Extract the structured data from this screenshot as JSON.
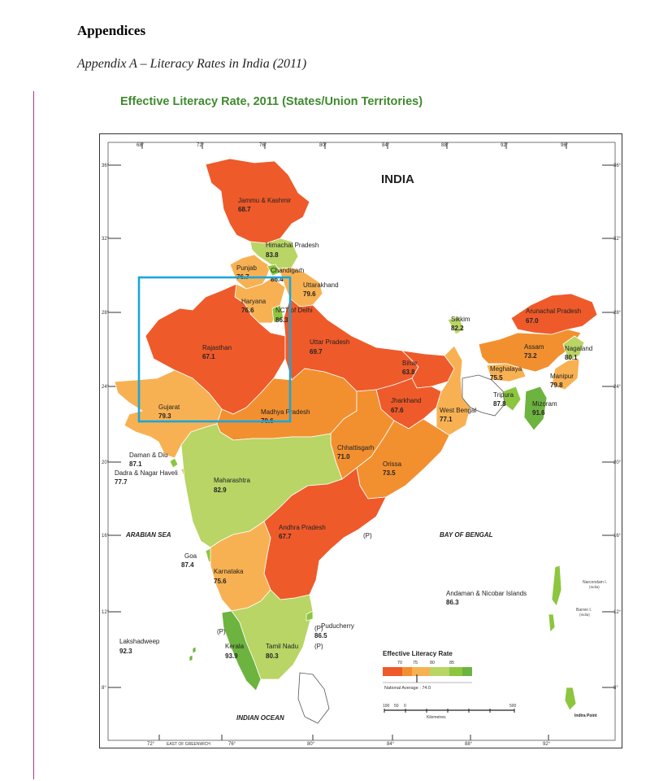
{
  "document": {
    "heading": "Appendices",
    "subheading": "Appendix A – Literacy Rates in India (2011)"
  },
  "map": {
    "title": "Effective Literacy Rate, 2011 (States/Union Territories)",
    "country_label": "INDIA",
    "water_labels": {
      "arabian_sea": "ARABIAN SEA",
      "bay_of_bengal": "BAY OF BENGAL",
      "indian_ocean": "INDIAN OCEAN"
    },
    "top_ticks": [
      "68°",
      "72°",
      "76°",
      "80°",
      "84°",
      "88°",
      "92°",
      "96°"
    ],
    "bottom_ticks": [
      "72°",
      "EAST OF GREENWICH",
      "76°",
      "80°",
      "84°",
      "88°",
      "92°"
    ],
    "left_ticks": [
      "36°",
      "32°",
      "28°",
      "24°",
      "20°",
      "16°",
      "12°",
      "8°"
    ],
    "right_ticks": [
      "36°",
      "32°",
      "28°",
      "24°",
      "20°",
      "16°",
      "12°",
      "8°"
    ],
    "island_notes": {
      "narcondam": "Narcondam I.",
      "narcondam_sub": "(India)",
      "barren": "Barren I.",
      "barren_sub": "(India)",
      "indira_point": "Indira Point"
    },
    "puducherry_markers": [
      "(P)",
      "(P)",
      "(P)",
      "(P)"
    ],
    "states": {
      "jammu_kashmir": {
        "name": "Jammu & Kashmir",
        "rate": "68.7",
        "color": "#ef5a2a"
      },
      "himachal": {
        "name": "Himachal Pradesh",
        "rate": "83.8",
        "color": "#b8d565"
      },
      "punjab": {
        "name": "Punjab",
        "rate": "76.7",
        "color": "#f8b152"
      },
      "chandigarh": {
        "name": "Chandigarh",
        "rate": "86.4",
        "color": "#8cc63f"
      },
      "uttarakhand": {
        "name": "Uttarakhand",
        "rate": "79.6",
        "color": "#f8b152"
      },
      "haryana": {
        "name": "Haryana",
        "rate": "76.6",
        "color": "#f8b152"
      },
      "delhi": {
        "name": "NCT of Delhi",
        "rate": "86.3",
        "color": "#8cc63f"
      },
      "rajasthan": {
        "name": "Rajasthan",
        "rate": "67.1",
        "color": "#ef5a2a"
      },
      "uttar_pradesh": {
        "name": "Uttar Pradesh",
        "rate": "69.7",
        "color": "#ef5a2a"
      },
      "bihar": {
        "name": "Bihar",
        "rate": "63.8",
        "color": "#ef5a2a"
      },
      "sikkim": {
        "name": "Sikkim",
        "rate": "82.2",
        "color": "#b8d565"
      },
      "arunachal": {
        "name": "Arunachal Pradesh",
        "rate": "67.0",
        "color": "#ef5a2a"
      },
      "assam": {
        "name": "Assam",
        "rate": "73.2",
        "color": "#f29030"
      },
      "nagaland": {
        "name": "Nagaland",
        "rate": "80.1",
        "color": "#b8d565"
      },
      "meghalaya": {
        "name": "Meghalaya",
        "rate": "75.5",
        "color": "#f8b152"
      },
      "manipur": {
        "name": "Manipur",
        "rate": "79.8",
        "color": "#f8b152"
      },
      "tripura": {
        "name": "Tripura",
        "rate": "87.8",
        "color": "#8cc63f"
      },
      "mizoram": {
        "name": "Mizoram",
        "rate": "91.6",
        "color": "#6db33f"
      },
      "jharkhand": {
        "name": "Jharkhand",
        "rate": "67.6",
        "color": "#ef5a2a"
      },
      "west_bengal": {
        "name": "West Bengal",
        "rate": "77.1",
        "color": "#f8b152"
      },
      "gujarat": {
        "name": "Gujarat",
        "rate": "79.3",
        "color": "#f8b152"
      },
      "madhya_pradesh": {
        "name": "Madhya Pradesh",
        "rate": "70.6",
        "color": "#f29030"
      },
      "chhattisgarh": {
        "name": "Chhattisgarh",
        "rate": "71.0",
        "color": "#f29030"
      },
      "orissa": {
        "name": "Orissa",
        "rate": "73.5",
        "color": "#f29030"
      },
      "daman_diu": {
        "name": "Daman & Diu",
        "rate": "87.1",
        "color": "#8cc63f"
      },
      "dadra": {
        "name": "Dadra & Nagar Haveli",
        "rate": "77.7",
        "color": "#f8b152"
      },
      "maharashtra": {
        "name": "Maharashtra",
        "rate": "82.9",
        "color": "#b8d565"
      },
      "andhra": {
        "name": "Andhra Pradesh",
        "rate": "67.7",
        "color": "#ef5a2a"
      },
      "goa": {
        "name": "Goa",
        "rate": "87.4",
        "color": "#8cc63f"
      },
      "karnataka": {
        "name": "Karnataka",
        "rate": "75.6",
        "color": "#f8b152"
      },
      "andaman": {
        "name": "Andaman & Nicobar Islands",
        "rate": "86.3",
        "color": "#8cc63f"
      },
      "puducherry": {
        "name": "Puducherry",
        "rate": "86.5",
        "color": "#8cc63f"
      },
      "lakshadweep": {
        "name": "Lakshadweep",
        "rate": "92.3",
        "color": "#6db33f"
      },
      "kerala": {
        "name": "Kerala",
        "rate": "93.9",
        "color": "#6db33f"
      },
      "tamil_nadu": {
        "name": "Tamil Nadu",
        "rate": "80.3",
        "color": "#b8d565"
      }
    },
    "legend": {
      "title": "Effective Literacy Rate",
      "ticks": [
        "70",
        "75",
        "80",
        "85"
      ],
      "colors": [
        "#ef5a2a",
        "#f29030",
        "#f8b152",
        "#b8d565",
        "#8cc63f",
        "#6db33f"
      ],
      "national_average": "National Average : 74.0"
    },
    "scale": {
      "ticks": [
        "100",
        "50",
        "0",
        "500"
      ],
      "unit": "Kilometres"
    },
    "highlight_color": "#1aa6dc"
  }
}
